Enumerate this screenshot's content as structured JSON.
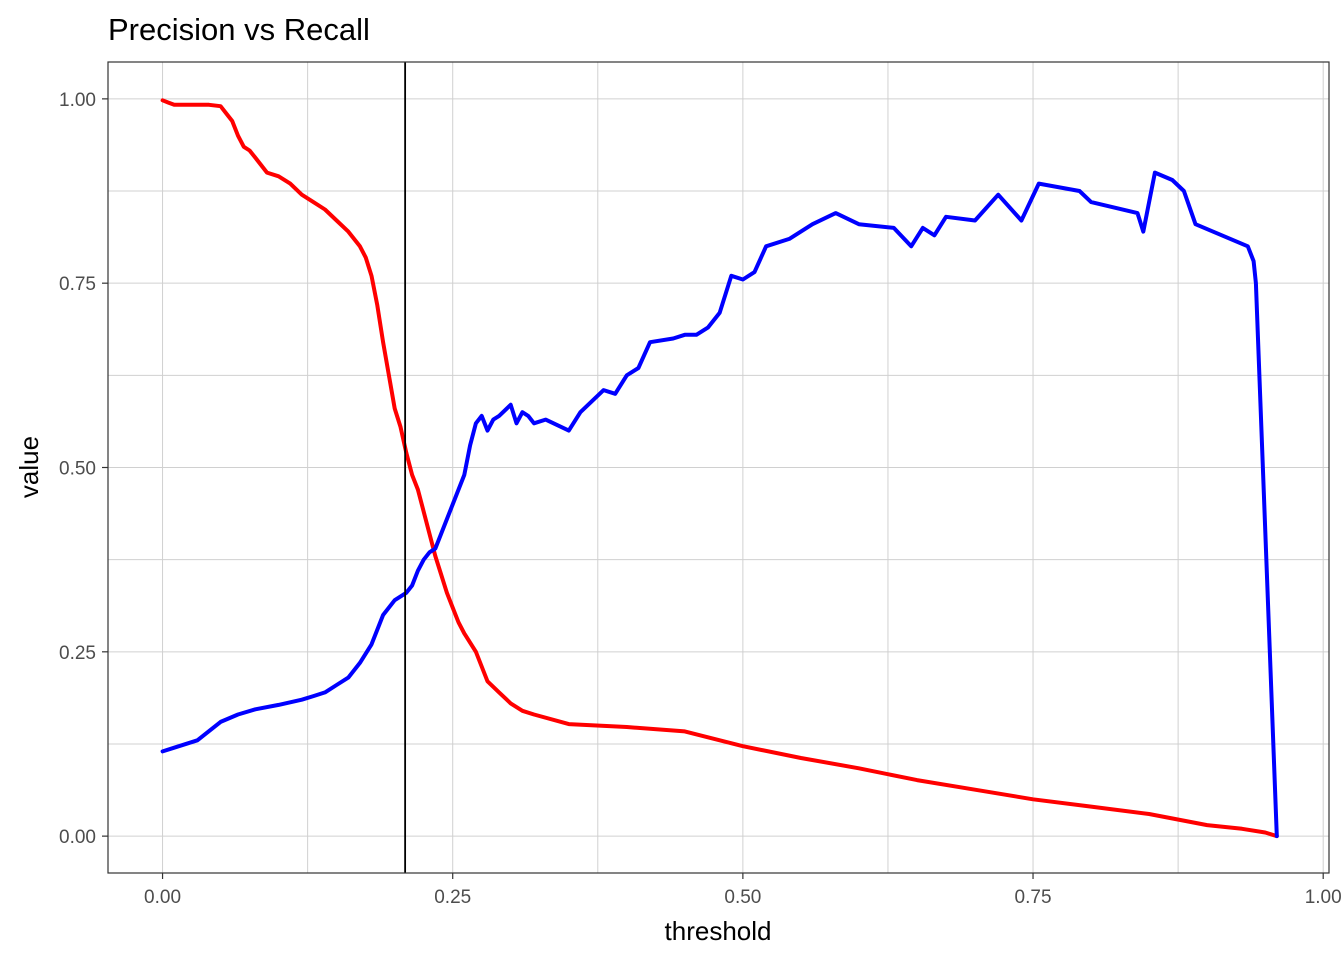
{
  "chart_data": {
    "type": "line",
    "title": "Precision vs Recall",
    "xlabel": "threshold",
    "ylabel": "value",
    "xlim": [
      -0.047,
      1.005
    ],
    "ylim": [
      -0.05,
      1.05
    ],
    "x_ticks": [
      0.0,
      0.25,
      0.5,
      0.75,
      1.0
    ],
    "x_tick_labels": [
      "0.00",
      "0.25",
      "0.50",
      "0.75",
      "1.00"
    ],
    "y_ticks": [
      0.0,
      0.25,
      0.5,
      0.75,
      1.0
    ],
    "y_tick_labels": [
      "0.00",
      "0.25",
      "0.50",
      "0.75",
      "1.00"
    ],
    "grid": true,
    "vertical_line": {
      "x": 0.209,
      "color": "#000000"
    },
    "series": [
      {
        "color": "#ff0000",
        "x": [
          0,
          0.005,
          0.01,
          0.04,
          0.05,
          0.055,
          0.06,
          0.065,
          0.07,
          0.075,
          0.08,
          0.09,
          0.1,
          0.11,
          0.12,
          0.13,
          0.14,
          0.15,
          0.16,
          0.17,
          0.175,
          0.18,
          0.185,
          0.19,
          0.195,
          0.2,
          0.205,
          0.21,
          0.215,
          0.22,
          0.225,
          0.23,
          0.235,
          0.24,
          0.245,
          0.25,
          0.255,
          0.26,
          0.27,
          0.28,
          0.29,
          0.3,
          0.31,
          0.32,
          0.35,
          0.4,
          0.45,
          0.5,
          0.55,
          0.6,
          0.65,
          0.7,
          0.75,
          0.8,
          0.85,
          0.9,
          0.93,
          0.95,
          0.96
        ],
        "y": [
          0.998,
          0.995,
          0.992,
          0.992,
          0.99,
          0.98,
          0.97,
          0.95,
          0.935,
          0.93,
          0.92,
          0.9,
          0.895,
          0.885,
          0.87,
          0.86,
          0.85,
          0.835,
          0.82,
          0.8,
          0.785,
          0.76,
          0.72,
          0.67,
          0.625,
          0.58,
          0.555,
          0.52,
          0.49,
          0.47,
          0.44,
          0.41,
          0.38,
          0.355,
          0.33,
          0.31,
          0.29,
          0.275,
          0.25,
          0.21,
          0.195,
          0.18,
          0.17,
          0.165,
          0.152,
          0.148,
          0.142,
          0.122,
          0.106,
          0.092,
          0.076,
          0.063,
          0.05,
          0.04,
          0.03,
          0.015,
          0.01,
          0.005,
          0.0
        ]
      },
      {
        "color": "#0000ff",
        "x": [
          0,
          0.01,
          0.03,
          0.05,
          0.065,
          0.08,
          0.1,
          0.12,
          0.13,
          0.14,
          0.15,
          0.16,
          0.17,
          0.18,
          0.19,
          0.2,
          0.21,
          0.215,
          0.22,
          0.225,
          0.23,
          0.235,
          0.24,
          0.245,
          0.25,
          0.255,
          0.26,
          0.265,
          0.27,
          0.275,
          0.28,
          0.285,
          0.29,
          0.3,
          0.305,
          0.31,
          0.315,
          0.32,
          0.33,
          0.35,
          0.36,
          0.38,
          0.39,
          0.4,
          0.41,
          0.42,
          0.44,
          0.45,
          0.46,
          0.47,
          0.48,
          0.49,
          0.5,
          0.51,
          0.52,
          0.54,
          0.56,
          0.58,
          0.6,
          0.63,
          0.645,
          0.655,
          0.665,
          0.675,
          0.7,
          0.72,
          0.74,
          0.755,
          0.79,
          0.8,
          0.84,
          0.845,
          0.855,
          0.87,
          0.88,
          0.89,
          0.935,
          0.94,
          0.942,
          0.96
        ],
        "y": [
          0.115,
          0.12,
          0.13,
          0.155,
          0.165,
          0.172,
          0.178,
          0.185,
          0.19,
          0.195,
          0.205,
          0.215,
          0.235,
          0.26,
          0.3,
          0.32,
          0.33,
          0.34,
          0.36,
          0.375,
          0.385,
          0.39,
          0.41,
          0.43,
          0.45,
          0.47,
          0.49,
          0.53,
          0.56,
          0.57,
          0.55,
          0.565,
          0.57,
          0.585,
          0.56,
          0.575,
          0.57,
          0.56,
          0.565,
          0.55,
          0.575,
          0.605,
          0.6,
          0.625,
          0.635,
          0.67,
          0.675,
          0.68,
          0.68,
          0.69,
          0.71,
          0.76,
          0.755,
          0.765,
          0.8,
          0.81,
          0.83,
          0.845,
          0.83,
          0.825,
          0.8,
          0.825,
          0.815,
          0.84,
          0.835,
          0.87,
          0.835,
          0.885,
          0.875,
          0.86,
          0.845,
          0.82,
          0.9,
          0.89,
          0.875,
          0.83,
          0.8,
          0.78,
          0.75,
          0.0
        ]
      }
    ]
  }
}
